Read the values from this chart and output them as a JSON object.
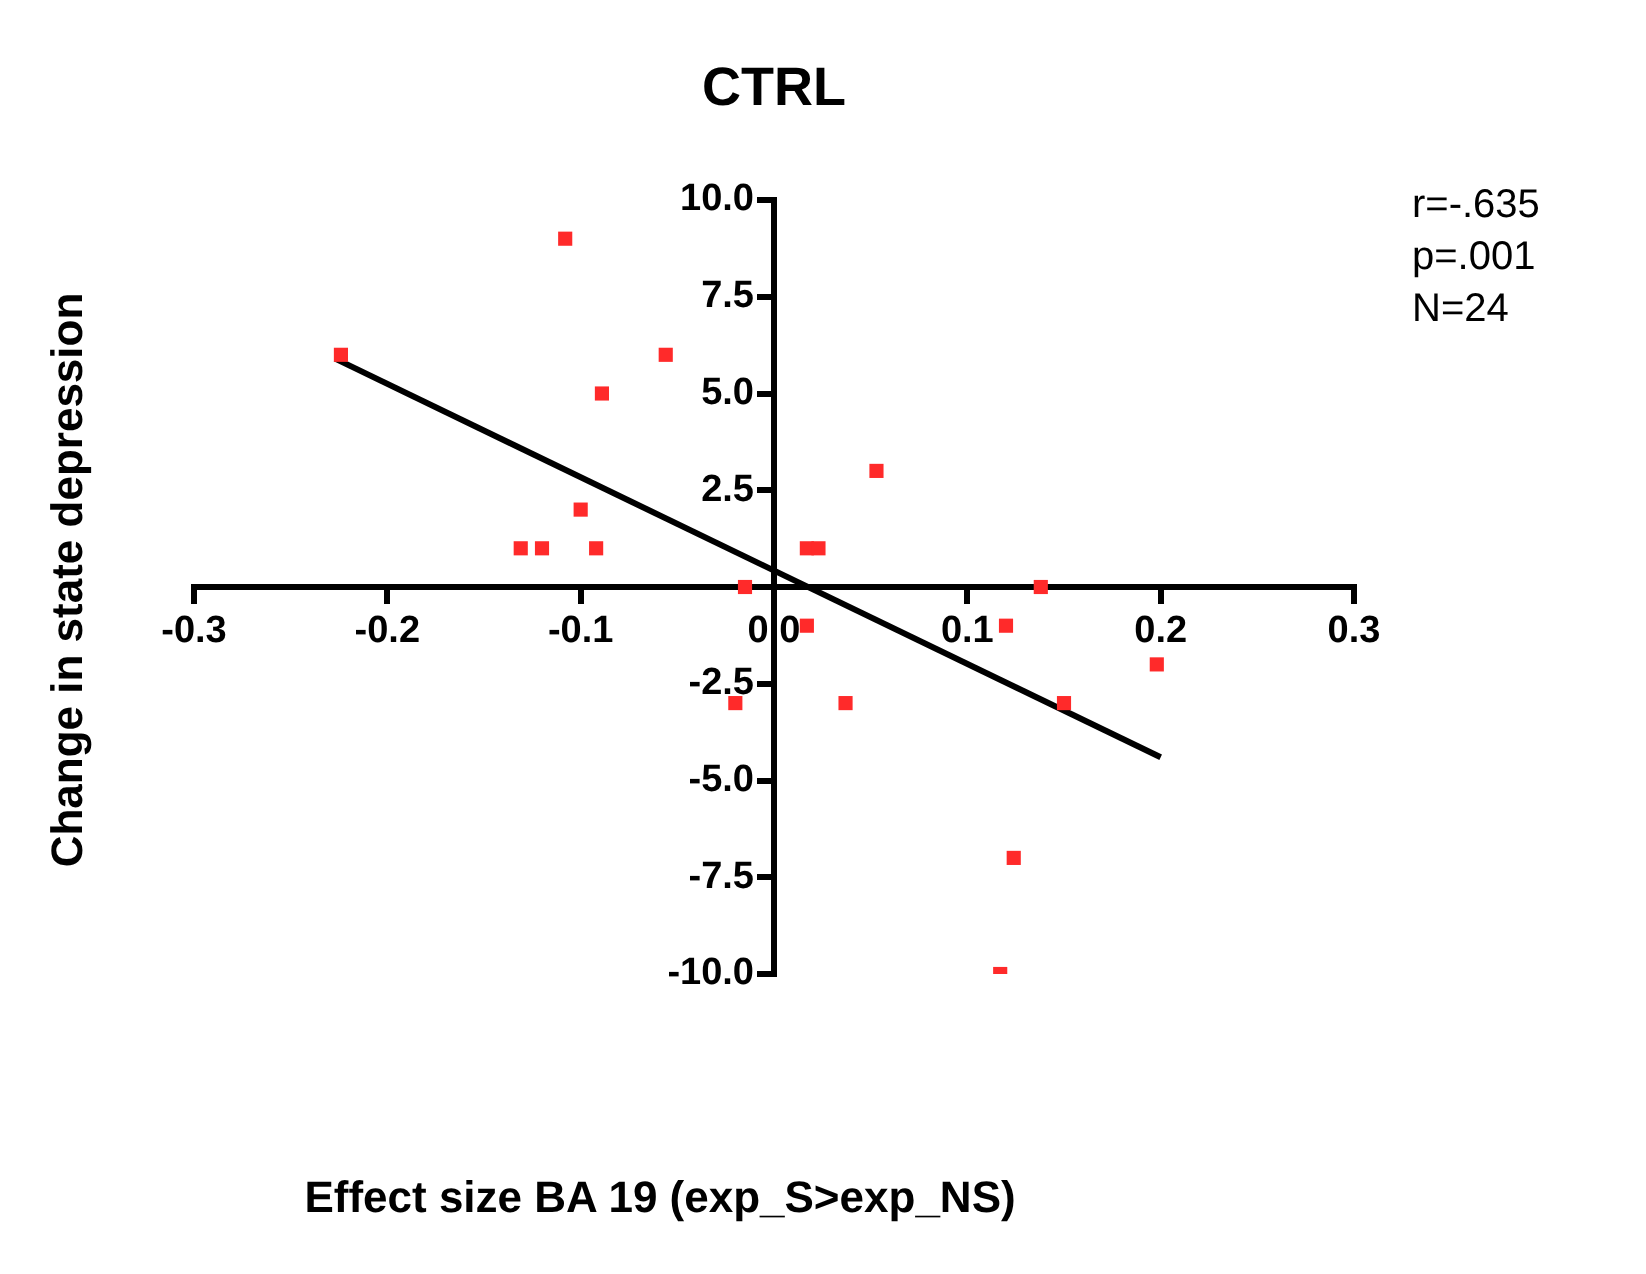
{
  "chart_data": {
    "type": "scatter",
    "title": "CTRL",
    "xlabel": "Effect size BA 19 (exp_S>exp_NS)",
    "ylabel": "Change in state depression",
    "xlim": [
      -0.3,
      0.3
    ],
    "xticks": [
      -0.3,
      -0.2,
      -0.1,
      {
        "value": 0,
        "label": "0.0"
      },
      0.1,
      0.2,
      0.3
    ],
    "ylim": [
      -10,
      10
    ],
    "yticks": [
      {
        "value": -10,
        "label": "-10.0"
      },
      {
        "value": -7.5,
        "label": "-7.5"
      },
      {
        "value": -5,
        "label": "-5.0"
      },
      {
        "value": -2.5,
        "label": "-2.5"
      },
      {
        "value": 2.5,
        "label": "2.5"
      },
      {
        "value": 5,
        "label": "5.0"
      },
      {
        "value": 7.5,
        "label": "7.5"
      },
      {
        "value": 10,
        "label": "10.0"
      }
    ],
    "grid": false,
    "legend": false,
    "series": [
      {
        "marker": "square",
        "color": "#ff2a2a",
        "x": [
          -0.224,
          -0.108,
          -0.056,
          -0.089,
          0.053,
          -0.1,
          -0.131,
          -0.12,
          -0.092,
          -0.015,
          -0.02,
          0.017,
          0.023,
          0.138,
          0.017,
          0.12,
          0.037,
          0.15,
          0.198,
          0.124,
          0.117
        ],
        "values": [
          6,
          9,
          6,
          5,
          3,
          2,
          1,
          1,
          1,
          0,
          -3,
          1,
          1,
          0,
          -1,
          -1,
          -3,
          -3,
          -2,
          -7,
          -10
        ]
      },
      {
        "type": "line",
        "marker": "none",
        "color": "#000000",
        "x": [
          -0.227,
          0.2
        ],
        "values": [
          5.9,
          -4.4
        ]
      }
    ],
    "annotations": [
      "r=-.635",
      "p=.001",
      "N=24"
    ]
  }
}
